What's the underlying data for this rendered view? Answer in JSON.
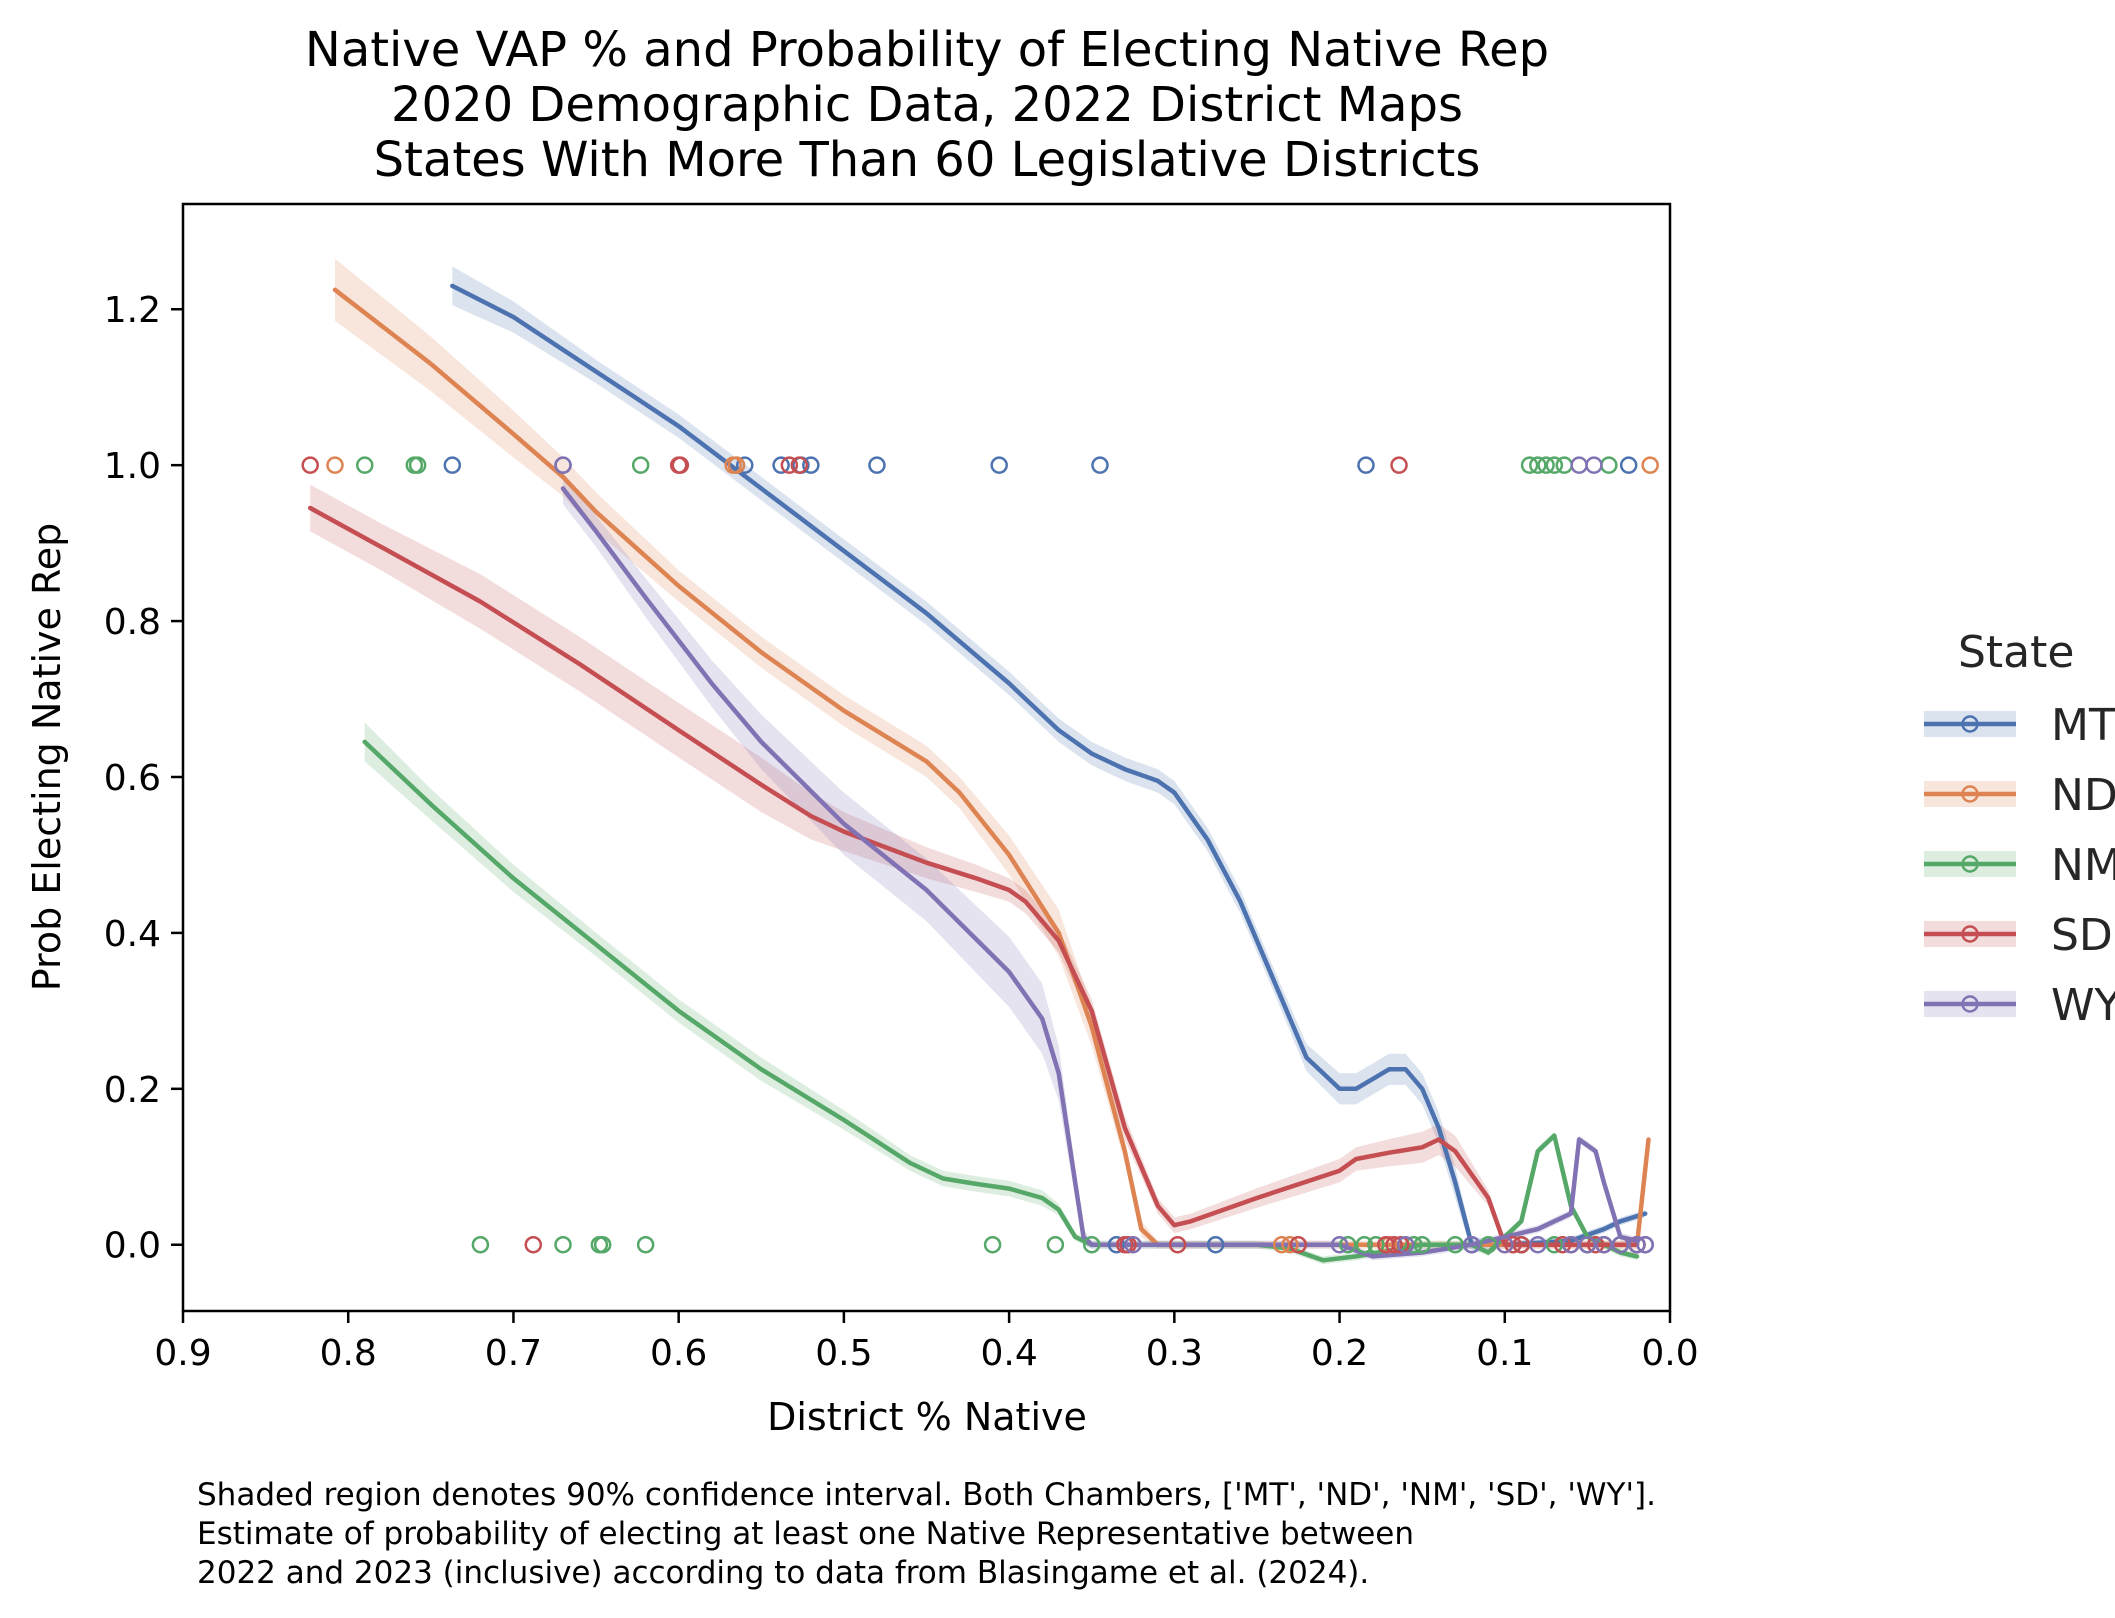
{
  "chart_data": {
    "type": "line",
    "title_lines": [
      "Native VAP % and Probability of Electing Native Rep",
      "2020 Demographic Data, 2022 District Maps",
      "States With More Than 60 Legislative Districts"
    ],
    "xlabel": "District % Native",
    "ylabel": "Prob Electing Native Rep",
    "xlim": [
      0.9,
      0.0
    ],
    "ylim": [
      -0.085,
      1.335
    ],
    "x_ticks": [
      "0.9",
      "0.8",
      "0.7",
      "0.6",
      "0.5",
      "0.4",
      "0.3",
      "0.2",
      "0.1",
      "0.0"
    ],
    "y_ticks": [
      "0.0",
      "0.2",
      "0.4",
      "0.6",
      "0.8",
      "1.0",
      "1.2"
    ],
    "grid": false,
    "legend": {
      "title": "State",
      "placement": "right, outside plot (clipped at image edge)",
      "labels_shown": [
        "MT",
        "ND",
        "NM",
        "SD",
        "WY"
      ]
    },
    "caption_lines": [
      "Shaded region denotes 90% confidence interval. Both Chambers, ['MT', 'ND', 'NM', 'SD', 'WY'].",
      "Estimate of probability of electing at least one Native Representative between",
      "2022 and 2023 (inclusive) according to data from Blasingame et al. (2024)."
    ],
    "series": [
      {
        "name": "MT",
        "color": "#4c72b0",
        "curve": [
          [
            0.737,
            1.23
          ],
          [
            0.7,
            1.19
          ],
          [
            0.65,
            1.12
          ],
          [
            0.6,
            1.05
          ],
          [
            0.55,
            0.97
          ],
          [
            0.5,
            0.89
          ],
          [
            0.45,
            0.81
          ],
          [
            0.4,
            0.72
          ],
          [
            0.37,
            0.66
          ],
          [
            0.35,
            0.63
          ],
          [
            0.33,
            0.61
          ],
          [
            0.31,
            0.595
          ],
          [
            0.3,
            0.58
          ],
          [
            0.28,
            0.52
          ],
          [
            0.26,
            0.44
          ],
          [
            0.24,
            0.34
          ],
          [
            0.22,
            0.24
          ],
          [
            0.2,
            0.2
          ],
          [
            0.19,
            0.2
          ],
          [
            0.17,
            0.225
          ],
          [
            0.16,
            0.225
          ],
          [
            0.15,
            0.2
          ],
          [
            0.14,
            0.15
          ],
          [
            0.13,
            0.08
          ],
          [
            0.12,
            0.0
          ],
          [
            0.1,
            0.0
          ],
          [
            0.06,
            0.005
          ],
          [
            0.04,
            0.02
          ],
          [
            0.03,
            0.03
          ],
          [
            0.015,
            0.04
          ]
        ],
        "ci_width": [
          0.05,
          0.04,
          0.03,
          0.03,
          0.03,
          0.03,
          0.03,
          0.03,
          0.03,
          0.03,
          0.03,
          0.03,
          0.03,
          0.03,
          0.03,
          0.03,
          0.035,
          0.04,
          0.04,
          0.04,
          0.04,
          0.04,
          0.04,
          0.04,
          0.02,
          0.01,
          0.01,
          0.01,
          0.01,
          0.01
        ],
        "points": [
          [
            0.737,
            1
          ],
          [
            0.67,
            1
          ],
          [
            0.565,
            1
          ],
          [
            0.56,
            1
          ],
          [
            0.538,
            1
          ],
          [
            0.526,
            1
          ],
          [
            0.52,
            1
          ],
          [
            0.48,
            1
          ],
          [
            0.406,
            1
          ],
          [
            0.345,
            1
          ],
          [
            0.184,
            1
          ],
          [
            0.025,
            1
          ],
          [
            0.335,
            0
          ],
          [
            0.275,
            0
          ],
          [
            0.12,
            0
          ],
          [
            0.09,
            0
          ],
          [
            0.06,
            0
          ],
          [
            0.05,
            0
          ],
          [
            0.04,
            0
          ],
          [
            0.03,
            0
          ],
          [
            0.02,
            0
          ],
          [
            0.015,
            0
          ]
        ]
      },
      {
        "name": "ND",
        "color": "#dd8452",
        "curve": [
          [
            0.808,
            1.225
          ],
          [
            0.75,
            1.13
          ],
          [
            0.7,
            1.04
          ],
          [
            0.67,
            0.985
          ],
          [
            0.65,
            0.94
          ],
          [
            0.6,
            0.845
          ],
          [
            0.55,
            0.76
          ],
          [
            0.5,
            0.685
          ],
          [
            0.45,
            0.62
          ],
          [
            0.43,
            0.58
          ],
          [
            0.4,
            0.5
          ],
          [
            0.37,
            0.4
          ],
          [
            0.35,
            0.28
          ],
          [
            0.33,
            0.12
          ],
          [
            0.32,
            0.02
          ],
          [
            0.31,
            0.0
          ],
          [
            0.25,
            0.0
          ],
          [
            0.2,
            0.0
          ],
          [
            0.15,
            0.0
          ],
          [
            0.1,
            0.0
          ],
          [
            0.05,
            0.0
          ],
          [
            0.02,
            0.0
          ],
          [
            0.013,
            0.135
          ]
        ],
        "ci_width": [
          0.08,
          0.07,
          0.06,
          0.05,
          0.05,
          0.04,
          0.04,
          0.04,
          0.04,
          0.04,
          0.05,
          0.06,
          0.05,
          0.03,
          0.02,
          0.01,
          0.01,
          0.01,
          0.01,
          0.01,
          0.01,
          0.01,
          0.01
        ],
        "points": [
          [
            0.808,
            1
          ],
          [
            0.567,
            1
          ],
          [
            0.565,
            1
          ],
          [
            0.012,
            1
          ],
          [
            0.235,
            0
          ],
          [
            0.23,
            0
          ],
          [
            0.17,
            0
          ],
          [
            0.1,
            0
          ],
          [
            0.06,
            0
          ],
          [
            0.04,
            0
          ],
          [
            0.02,
            0
          ]
        ]
      },
      {
        "name": "NM",
        "color": "#55a868",
        "curve": [
          [
            0.79,
            0.645
          ],
          [
            0.75,
            0.565
          ],
          [
            0.7,
            0.47
          ],
          [
            0.65,
            0.385
          ],
          [
            0.6,
            0.3
          ],
          [
            0.55,
            0.225
          ],
          [
            0.5,
            0.16
          ],
          [
            0.46,
            0.105
          ],
          [
            0.44,
            0.085
          ],
          [
            0.42,
            0.078
          ],
          [
            0.4,
            0.072
          ],
          [
            0.38,
            0.06
          ],
          [
            0.37,
            0.045
          ],
          [
            0.36,
            0.01
          ],
          [
            0.35,
            0.0
          ],
          [
            0.3,
            0.0
          ],
          [
            0.25,
            0.0
          ],
          [
            0.23,
            -0.005
          ],
          [
            0.21,
            -0.02
          ],
          [
            0.19,
            -0.015
          ],
          [
            0.15,
            0.0
          ],
          [
            0.12,
            0.0
          ],
          [
            0.11,
            -0.01
          ],
          [
            0.09,
            0.03
          ],
          [
            0.08,
            0.12
          ],
          [
            0.07,
            0.14
          ],
          [
            0.06,
            0.05
          ],
          [
            0.05,
            0.01
          ],
          [
            0.04,
            0.0
          ],
          [
            0.03,
            -0.01
          ],
          [
            0.02,
            -0.015
          ]
        ],
        "ci_width": [
          0.05,
          0.04,
          0.035,
          0.03,
          0.03,
          0.03,
          0.025,
          0.02,
          0.02,
          0.02,
          0.02,
          0.02,
          0.015,
          0.01,
          0.01,
          0.01,
          0.01,
          0.01,
          0.01,
          0.01,
          0.01,
          0.01,
          0.01,
          0.01,
          0.01,
          0.01,
          0.01,
          0.01,
          0.01,
          0.01,
          0.01
        ],
        "points": [
          [
            0.79,
            1
          ],
          [
            0.76,
            1
          ],
          [
            0.758,
            1
          ],
          [
            0.623,
            1
          ],
          [
            0.085,
            1
          ],
          [
            0.08,
            1
          ],
          [
            0.075,
            1
          ],
          [
            0.07,
            1
          ],
          [
            0.064,
            1
          ],
          [
            0.037,
            1
          ],
          [
            0.72,
            0
          ],
          [
            0.67,
            0
          ],
          [
            0.648,
            0
          ],
          [
            0.646,
            0
          ],
          [
            0.62,
            0
          ],
          [
            0.41,
            0
          ],
          [
            0.372,
            0
          ],
          [
            0.35,
            0
          ],
          [
            0.195,
            0
          ],
          [
            0.185,
            0
          ],
          [
            0.178,
            0
          ],
          [
            0.155,
            0
          ],
          [
            0.15,
            0
          ],
          [
            0.13,
            0
          ],
          [
            0.11,
            0
          ],
          [
            0.09,
            0
          ],
          [
            0.07,
            0
          ],
          [
            0.05,
            0
          ],
          [
            0.03,
            0
          ]
        ]
      },
      {
        "name": "SD",
        "color": "#c44e52",
        "curve": [
          [
            0.823,
            0.945
          ],
          [
            0.78,
            0.895
          ],
          [
            0.72,
            0.825
          ],
          [
            0.66,
            0.745
          ],
          [
            0.6,
            0.66
          ],
          [
            0.55,
            0.59
          ],
          [
            0.52,
            0.55
          ],
          [
            0.5,
            0.53
          ],
          [
            0.45,
            0.49
          ],
          [
            0.42,
            0.47
          ],
          [
            0.4,
            0.455
          ],
          [
            0.39,
            0.44
          ],
          [
            0.37,
            0.39
          ],
          [
            0.35,
            0.3
          ],
          [
            0.33,
            0.15
          ],
          [
            0.31,
            0.05
          ],
          [
            0.3,
            0.025
          ],
          [
            0.29,
            0.03
          ],
          [
            0.25,
            0.06
          ],
          [
            0.2,
            0.095
          ],
          [
            0.19,
            0.11
          ],
          [
            0.17,
            0.118
          ],
          [
            0.15,
            0.125
          ],
          [
            0.14,
            0.135
          ],
          [
            0.13,
            0.12
          ],
          [
            0.12,
            0.09
          ],
          [
            0.11,
            0.06
          ],
          [
            0.1,
            0.0
          ],
          [
            0.08,
            0.0
          ],
          [
            0.05,
            0.0
          ],
          [
            0.02,
            0.0
          ]
        ],
        "ci_width": [
          0.06,
          0.06,
          0.07,
          0.07,
          0.07,
          0.07,
          0.06,
          0.05,
          0.04,
          0.035,
          0.03,
          0.03,
          0.03,
          0.03,
          0.03,
          0.02,
          0.02,
          0.02,
          0.025,
          0.03,
          0.03,
          0.035,
          0.04,
          0.04,
          0.04,
          0.03,
          0.02,
          0.01,
          0.01,
          0.01,
          0.01
        ],
        "points": [
          [
            0.823,
            1
          ],
          [
            0.6,
            1
          ],
          [
            0.599,
            1
          ],
          [
            0.533,
            1
          ],
          [
            0.527,
            1
          ],
          [
            0.164,
            1
          ],
          [
            0.688,
            0
          ],
          [
            0.33,
            0
          ],
          [
            0.328,
            0
          ],
          [
            0.298,
            0
          ],
          [
            0.225,
            0
          ],
          [
            0.172,
            0
          ],
          [
            0.167,
            0
          ],
          [
            0.163,
            0
          ],
          [
            0.095,
            0
          ],
          [
            0.09,
            0
          ],
          [
            0.065,
            0
          ],
          [
            0.045,
            0
          ],
          [
            0.02,
            0
          ]
        ]
      },
      {
        "name": "WY",
        "color": "#8172b3",
        "curve": [
          [
            0.67,
            0.97
          ],
          [
            0.65,
            0.915
          ],
          [
            0.62,
            0.83
          ],
          [
            0.58,
            0.72
          ],
          [
            0.55,
            0.645
          ],
          [
            0.5,
            0.54
          ],
          [
            0.45,
            0.455
          ],
          [
            0.4,
            0.35
          ],
          [
            0.38,
            0.29
          ],
          [
            0.37,
            0.22
          ],
          [
            0.36,
            0.08
          ],
          [
            0.355,
            0.01
          ],
          [
            0.35,
            0.0
          ],
          [
            0.3,
            0.0
          ],
          [
            0.25,
            0.0
          ],
          [
            0.2,
            0.0
          ],
          [
            0.18,
            -0.015
          ],
          [
            0.15,
            -0.01
          ],
          [
            0.12,
            0.0
          ],
          [
            0.1,
            0.01
          ],
          [
            0.08,
            0.02
          ],
          [
            0.06,
            0.04
          ],
          [
            0.055,
            0.135
          ],
          [
            0.045,
            0.12
          ],
          [
            0.04,
            0.08
          ],
          [
            0.03,
            0.01
          ],
          [
            0.02,
            0.005
          ]
        ],
        "ci_width": [
          0.04,
          0.04,
          0.05,
          0.06,
          0.07,
          0.08,
          0.08,
          0.09,
          0.09,
          0.07,
          0.04,
          0.02,
          0.01,
          0.01,
          0.01,
          0.01,
          0.01,
          0.01,
          0.01,
          0.01,
          0.01,
          0.01,
          0.01,
          0.01,
          0.01,
          0.01,
          0.01
        ],
        "points": [
          [
            0.67,
            1
          ],
          [
            0.055,
            1
          ],
          [
            0.046,
            1
          ],
          [
            0.325,
            0
          ],
          [
            0.2,
            0
          ],
          [
            0.16,
            0
          ],
          [
            0.12,
            0
          ],
          [
            0.1,
            0
          ],
          [
            0.08,
            0
          ],
          [
            0.06,
            0
          ],
          [
            0.05,
            0
          ],
          [
            0.04,
            0
          ],
          [
            0.03,
            0
          ],
          [
            0.02,
            0
          ],
          [
            0.015,
            0
          ]
        ]
      }
    ]
  }
}
